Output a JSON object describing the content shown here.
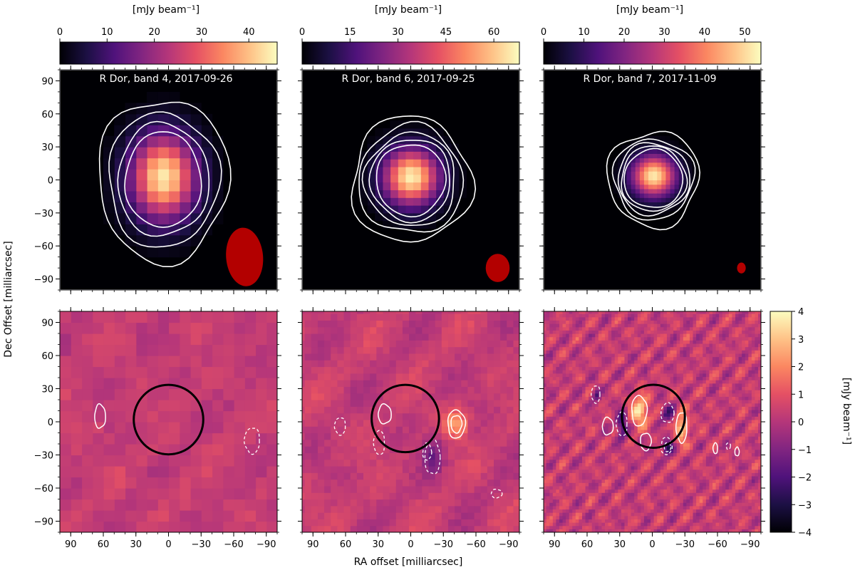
{
  "colors": {
    "colormap_magma": [
      "#000004",
      "#1c1044",
      "#4f127b",
      "#812581",
      "#b5367a",
      "#e55064",
      "#fb8761",
      "#fec287",
      "#fcfdbf"
    ],
    "beam": "#b30000",
    "contour": "#ffffff",
    "circle": "#000000"
  },
  "chart_data": {
    "type": "heatmap",
    "xlabel": "RA offset [milliarcsec]",
    "ylabel": "Dec Offset [milliarcsec]",
    "xlim": [
      100,
      -100
    ],
    "ylim": [
      -100,
      100
    ],
    "xticks": [
      90,
      60,
      30,
      0,
      -30,
      -60,
      -90
    ],
    "yticks": [
      90,
      60,
      30,
      0,
      -30,
      -60,
      -90
    ],
    "xtick_labels": [
      "90",
      "60",
      "30",
      "0",
      "−30",
      "−60",
      "−90"
    ],
    "ytick_labels": [
      "90",
      "60",
      "30",
      "0",
      "−30",
      "−60",
      "−90"
    ],
    "panels": [
      {
        "title": "R Dor, band 4, 2017-09-26",
        "colorbar_label": "[mJy beam⁻¹]",
        "vmin": 0,
        "vmax": 46,
        "ticks": [
          0,
          10,
          20,
          30,
          40
        ],
        "peak": 44,
        "source_center": [
          5,
          3
        ],
        "source_sigma": [
          21,
          27
        ],
        "pixel_size": 10,
        "contour_radii": [
          [
            35,
            44
          ],
          [
            42,
            52
          ],
          [
            51,
            62
          ],
          [
            60,
            75
          ]
        ],
        "beam": {
          "x": -70,
          "y": -70,
          "major": 27,
          "minor": 17,
          "pa": -5
        }
      },
      {
        "title": "R Dor, band 6, 2017-09-25",
        "colorbar_label": "[mJy beam⁻¹]",
        "vmin": 0,
        "vmax": 68,
        "ticks": [
          0,
          15,
          30,
          45,
          60
        ],
        "peak": 66,
        "source_center": [
          0,
          3
        ],
        "source_sigma": [
          18,
          18
        ],
        "pixel_size": 7,
        "contour_radii": [
          [
            32,
            33
          ],
          [
            37,
            38
          ],
          [
            42,
            43
          ],
          [
            48,
            50
          ],
          [
            55,
            58
          ]
        ],
        "beam": {
          "x": -80,
          "y": -80,
          "major": 13,
          "minor": 11,
          "pa": 0
        }
      },
      {
        "title": "R Dor, band 7, 2017-11-09",
        "colorbar_label": "[mJy beam⁻¹]",
        "vmin": 0,
        "vmax": 54,
        "ticks": [
          0,
          10,
          20,
          30,
          40,
          50
        ],
        "peak": 52,
        "source_center": [
          -1,
          4
        ],
        "source_sigma": [
          14,
          13
        ],
        "pixel_size": 4,
        "contour_radii": [
          [
            27,
            27
          ],
          [
            30,
            30
          ],
          [
            33,
            33
          ],
          [
            37,
            37
          ],
          [
            42,
            44
          ]
        ],
        "beam": {
          "x": -82,
          "y": -80,
          "major": 5,
          "minor": 4,
          "pa": 0
        }
      }
    ],
    "residual_colorbar": {
      "label": "[mJy beam⁻¹]",
      "vmin": -4,
      "vmax": 4,
      "ticks": [
        4,
        3,
        2,
        1,
        0,
        -1,
        -2,
        -3,
        -4
      ],
      "tick_labels": [
        "4",
        "3",
        "2",
        "1",
        "0",
        "−1",
        "−2",
        "−3",
        "−4"
      ]
    },
    "residual_panels": [
      {
        "circle": {
          "x": 0,
          "y": 2,
          "r": 32
        },
        "pixel_size": 10,
        "noise_amp": 0.4,
        "positive_contours": [
          {
            "x": 63,
            "y": 5,
            "rx": 5,
            "ry": 11
          }
        ],
        "negative_contours": [
          {
            "x": -77,
            "y": -17,
            "rx": 7,
            "ry": 12
          }
        ],
        "blobs": []
      },
      {
        "circle": {
          "x": 5,
          "y": 3,
          "r": 31
        },
        "pixel_size": 6,
        "noise_amp": 0.6,
        "positive_contours": [
          {
            "x": 24,
            "y": 7,
            "rx": 6,
            "ry": 9
          },
          {
            "x": -42,
            "y": -2,
            "rx": 8,
            "ry": 13
          },
          {
            "x": -42,
            "y": -2,
            "rx": 5,
            "ry": 8
          }
        ],
        "negative_contours": [
          {
            "x": 65,
            "y": -4,
            "rx": 5,
            "ry": 8
          },
          {
            "x": 29,
            "y": -19,
            "rx": 5,
            "ry": 11
          },
          {
            "x": -20,
            "y": -32,
            "rx": 7,
            "ry": 16
          },
          {
            "x": -15,
            "y": -27,
            "rx": 4,
            "ry": 8
          },
          {
            "x": -79,
            "y": -65,
            "rx": 5,
            "ry": 4
          }
        ],
        "blobs": [
          {
            "x": -42,
            "y": -2,
            "rx": 9,
            "ry": 11,
            "v": 2.2
          },
          {
            "x": -20,
            "y": -30,
            "rx": 7,
            "ry": 12,
            "v": -1.8
          }
        ]
      },
      {
        "circle": {
          "x": -1,
          "y": 5,
          "r": 29
        },
        "pixel_size": 3,
        "noise_amp": 1.2,
        "positive_contours": [
          {
            "x": 41,
            "y": -4,
            "rx": 5,
            "ry": 8
          },
          {
            "x": 12,
            "y": 10,
            "rx": 7,
            "ry": 14
          },
          {
            "x": 6,
            "y": -18,
            "rx": 5,
            "ry": 8
          },
          {
            "x": -27,
            "y": -5,
            "rx": 5,
            "ry": 14
          },
          {
            "x": -58,
            "y": -24,
            "rx": 2,
            "ry": 5
          },
          {
            "x": -78,
            "y": -27,
            "rx": 2,
            "ry": 4
          }
        ],
        "negative_contours": [
          {
            "x": 52,
            "y": 25,
            "rx": 4,
            "ry": 8
          },
          {
            "x": 28,
            "y": -2,
            "rx": 5,
            "ry": 11
          },
          {
            "x": -14,
            "y": 8,
            "rx": 6,
            "ry": 9
          },
          {
            "x": -13,
            "y": -22,
            "rx": 5,
            "ry": 8
          },
          {
            "x": -14,
            "y": -23,
            "rx": 3,
            "ry": 4
          },
          {
            "x": -70,
            "y": -22,
            "rx": 2,
            "ry": 3
          }
        ],
        "blobs": [
          {
            "x": 12,
            "y": 10,
            "rx": 7,
            "ry": 12,
            "v": 3.2
          },
          {
            "x": -27,
            "y": -5,
            "rx": 5,
            "ry": 12,
            "v": 3.0
          },
          {
            "x": 28,
            "y": -2,
            "rx": 4,
            "ry": 10,
            "v": -3.0
          },
          {
            "x": -14,
            "y": -23,
            "rx": 4,
            "ry": 5,
            "v": -3.4
          },
          {
            "x": -14,
            "y": 8,
            "rx": 5,
            "ry": 7,
            "v": -2.2
          },
          {
            "x": 52,
            "y": 25,
            "rx": 3,
            "ry": 6,
            "v": -2.0
          }
        ]
      }
    ]
  }
}
